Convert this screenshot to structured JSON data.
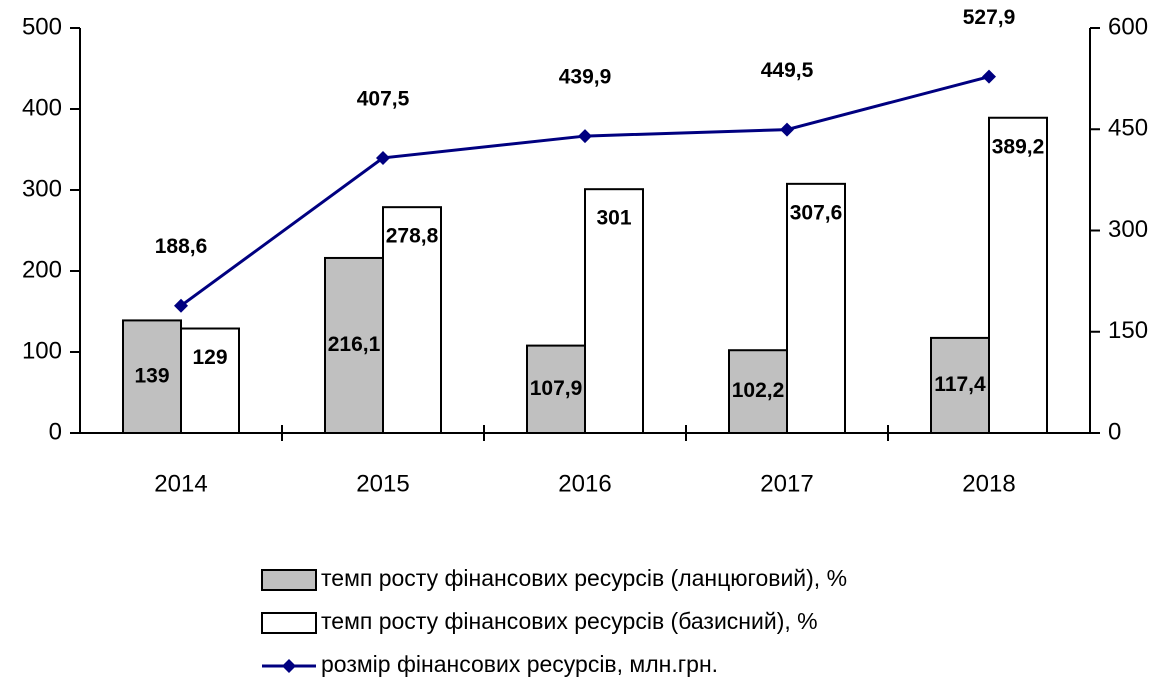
{
  "chart_data": {
    "type": "bar",
    "categories": [
      "2014",
      "2015",
      "2016",
      "2017",
      "2018"
    ],
    "series": [
      {
        "name": "темп росту фінансових ресурсів (ланцюговий), %",
        "type": "bar",
        "color": "#c0c0c0",
        "values": [
          139,
          216.1,
          107.9,
          102.2,
          117.4
        ],
        "value_labels": [
          "139",
          "216,1",
          "107,9",
          "102,2",
          "117,4"
        ]
      },
      {
        "name": "темп росту фінансових ресурсів (базисний), %",
        "type": "bar",
        "color": "#ffffff",
        "values": [
          129,
          278.8,
          301,
          307.6,
          389.2
        ],
        "value_labels": [
          "129",
          "278,8",
          "301",
          "307,6",
          "389,2"
        ]
      },
      {
        "name": "розмір фінансових ресурсів, млн.грн.",
        "type": "line",
        "axis": "y2",
        "color": "#000080",
        "values": [
          188.6,
          407.5,
          439.9,
          449.5,
          527.9
        ],
        "value_labels": [
          "188,6",
          "407,5",
          "439,9",
          "449,5",
          "527,9"
        ]
      }
    ],
    "ylim": [
      0,
      500
    ],
    "yticks": [
      0,
      100,
      200,
      300,
      400,
      500
    ],
    "y2lim": [
      0,
      600
    ],
    "y2ticks": [
      0,
      150,
      300,
      450,
      600
    ],
    "legend": "bottom"
  }
}
